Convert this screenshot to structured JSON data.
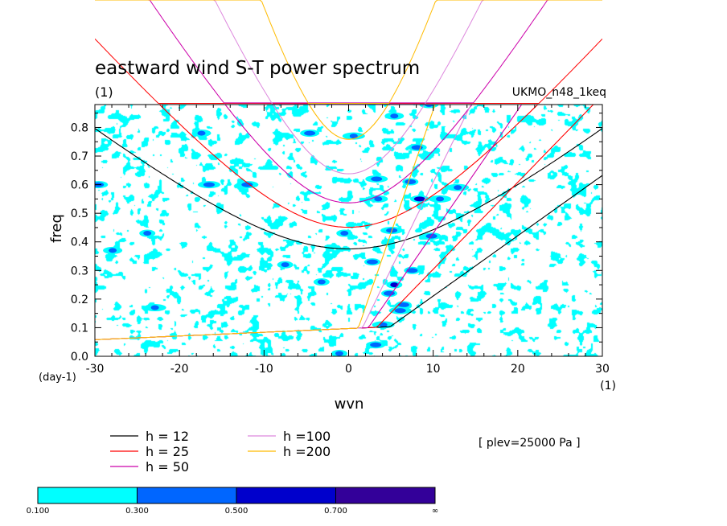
{
  "chart_data": {
    "type": "heatmap",
    "title": "eastward wind S-T power spectrum",
    "subtitle_left": "(1)",
    "subtitle_right": "UKMO_n48_1keq",
    "xlabel": "wvn",
    "ylabel": "freq",
    "x_unit": "(1)",
    "y_unit": "(day-1)",
    "xlim": [
      -30,
      30
    ],
    "ylim": [
      0.0,
      0.88
    ],
    "x_ticks": [
      -30,
      -20,
      -10,
      0,
      10,
      20,
      30
    ],
    "x_tick_labels": [
      "-30",
      "-20",
      "-10",
      "0",
      "10",
      "20",
      "30"
    ],
    "y_ticks": [
      0.0,
      0.1,
      0.2,
      0.3,
      0.4,
      0.5,
      0.6,
      0.7,
      0.8
    ],
    "y_tick_labels": [
      "0.0",
      "0.1",
      "0.2",
      "0.3",
      "0.4",
      "0.5",
      "0.6",
      "0.7",
      "0.8"
    ],
    "annotation": "[ plev=25000 Pa ]",
    "shading_levels": [
      0.1,
      0.3,
      0.5,
      0.7
    ],
    "colorbar": {
      "colors": [
        "#00ffff",
        "#0066ff",
        "#0000cc",
        "#330099"
      ],
      "labels": [
        "0.100",
        "0.300",
        "0.500",
        "0.700",
        "∞"
      ]
    },
    "dispersion_curves": [
      {
        "name": "h = 12",
        "label": "h = 12",
        "h": 12,
        "color": "#000000"
      },
      {
        "name": "h = 25",
        "label": "h = 25",
        "h": 25,
        "color": "#ff0000"
      },
      {
        "name": "h = 50",
        "label": "h = 50",
        "h": 50,
        "color": "#cc00aa"
      },
      {
        "name": "h =100",
        "label": "h =100",
        "h": 100,
        "color": "#dd88dd"
      },
      {
        "name": "h =200",
        "label": "h =200",
        "h": 200,
        "color": "#ffbb00"
      }
    ],
    "power_blobs": [
      {
        "x": 5.4,
        "y": 0.25,
        "level": 3
      },
      {
        "x": 8.4,
        "y": 0.55,
        "level": 3
      },
      {
        "x": 12.9,
        "y": 0.59,
        "level": 2
      },
      {
        "x": 7.5,
        "y": 0.3,
        "level": 2
      },
      {
        "x": -17.4,
        "y": 0.78,
        "level": 2
      },
      {
        "x": -16.5,
        "y": 0.6,
        "level": 2
      },
      {
        "x": -23.8,
        "y": 0.43,
        "level": 2
      },
      {
        "x": 3.2,
        "y": 0.04,
        "level": 2
      },
      {
        "x": 0.6,
        "y": 0.77,
        "level": 2
      },
      {
        "x": 7.3,
        "y": 0.61,
        "level": 2
      },
      {
        "x": 3.5,
        "y": 0.55,
        "level": 2
      },
      {
        "x": 5.1,
        "y": 0.44,
        "level": 2
      },
      {
        "x": -0.5,
        "y": 0.43,
        "level": 2
      },
      {
        "x": 8.1,
        "y": 0.73,
        "level": 2
      },
      {
        "x": 4.1,
        "y": 0.11,
        "level": 2
      },
      {
        "x": 6.5,
        "y": 0.18,
        "level": 2
      },
      {
        "x": 5.4,
        "y": 0.84,
        "level": 2
      },
      {
        "x": 3.3,
        "y": 0.62,
        "level": 2
      },
      {
        "x": -1.1,
        "y": 0.01,
        "level": 2
      },
      {
        "x": -29.6,
        "y": 0.6,
        "level": 2
      },
      {
        "x": 10.8,
        "y": 0.55,
        "level": 2
      },
      {
        "x": 2.8,
        "y": 0.33,
        "level": 2
      },
      {
        "x": -27.9,
        "y": 0.37,
        "level": 2
      },
      {
        "x": -12.0,
        "y": 0.6,
        "level": 2
      },
      {
        "x": -3.2,
        "y": 0.26,
        "level": 2
      },
      {
        "x": 9.8,
        "y": 0.42,
        "level": 2
      },
      {
        "x": -22.9,
        "y": 0.17,
        "level": 2
      },
      {
        "x": 4.8,
        "y": 0.22,
        "level": 2
      },
      {
        "x": 9.5,
        "y": 0.88,
        "level": 2
      },
      {
        "x": 6.1,
        "y": 0.16,
        "level": 2
      },
      {
        "x": -7.5,
        "y": 0.32,
        "level": 2
      },
      {
        "x": -4.6,
        "y": 0.78,
        "level": 2
      }
    ],
    "background_field": {
      "noise_seed": 7,
      "band_1_threshold": 0.1,
      "band_2_threshold": 0.3
    }
  }
}
